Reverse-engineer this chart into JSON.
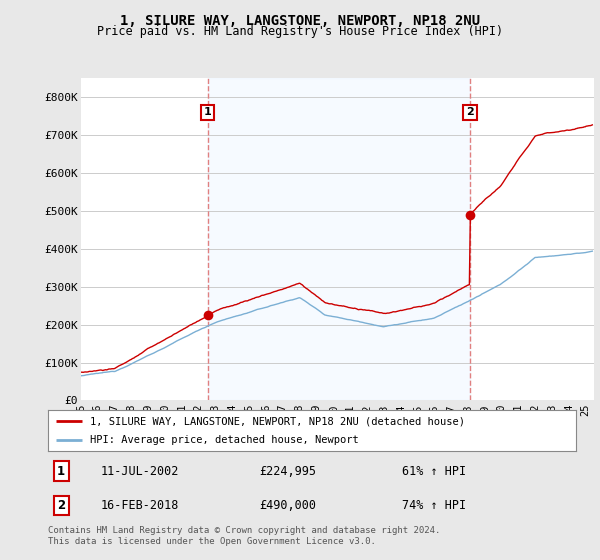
{
  "title": "1, SILURE WAY, LANGSTONE, NEWPORT, NP18 2NU",
  "subtitle": "Price paid vs. HM Land Registry's House Price Index (HPI)",
  "ylabel_ticks": [
    "£0",
    "£100K",
    "£200K",
    "£300K",
    "£400K",
    "£500K",
    "£600K",
    "£700K",
    "£800K"
  ],
  "ytick_values": [
    0,
    100000,
    200000,
    300000,
    400000,
    500000,
    600000,
    700000,
    800000
  ],
  "ylim": [
    0,
    850000
  ],
  "xlim_start": 1995.0,
  "xlim_end": 2025.5,
  "sale1_x": 2002.53,
  "sale1_y": 224995,
  "sale2_x": 2018.12,
  "sale2_y": 490000,
  "house_line_color": "#cc0000",
  "hpi_line_color": "#7bafd4",
  "vline_color": "#e08080",
  "shade_color": "#ddeeff",
  "background_color": "#e8e8e8",
  "plot_bg_color": "#ffffff",
  "legend_house": "1, SILURE WAY, LANGSTONE, NEWPORT, NP18 2NU (detached house)",
  "legend_hpi": "HPI: Average price, detached house, Newport",
  "sale1_date": "11-JUL-2002",
  "sale1_price": "£224,995",
  "sale1_hpi": "61% ↑ HPI",
  "sale2_date": "16-FEB-2018",
  "sale2_price": "£490,000",
  "sale2_hpi": "74% ↑ HPI",
  "footer": "Contains HM Land Registry data © Crown copyright and database right 2024.\nThis data is licensed under the Open Government Licence v3.0.",
  "xtick_years": [
    1995,
    1996,
    1997,
    1998,
    1999,
    2000,
    2001,
    2002,
    2003,
    2004,
    2005,
    2006,
    2007,
    2008,
    2009,
    2010,
    2011,
    2012,
    2013,
    2014,
    2015,
    2016,
    2017,
    2018,
    2019,
    2020,
    2021,
    2022,
    2023,
    2024,
    2025
  ]
}
